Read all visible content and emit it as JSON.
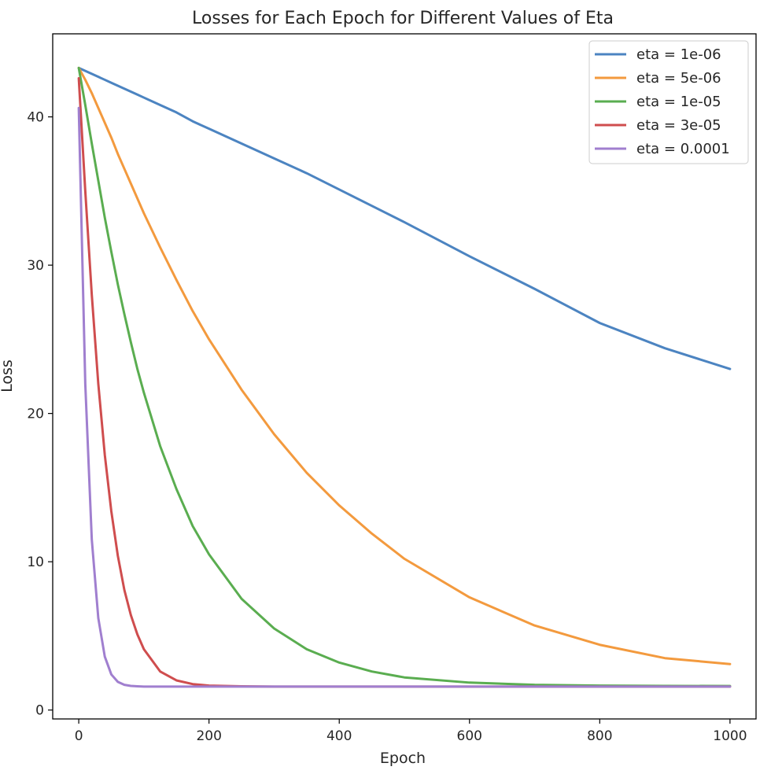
{
  "chart_data": {
    "type": "line",
    "title": "Losses for Each Epoch for Different Values of Eta",
    "xlabel": "Epoch",
    "ylabel": "Loss",
    "xlim": [
      -40,
      1040
    ],
    "ylim": [
      -0.6,
      45.6
    ],
    "xticks": [
      0,
      200,
      400,
      600,
      800,
      1000
    ],
    "xtick_labels": [
      "0",
      "200",
      "400",
      "600",
      "800",
      "1000"
    ],
    "yticks": [
      0,
      10,
      20,
      30,
      40
    ],
    "ytick_labels": [
      "0",
      "10",
      "20",
      "30",
      "40"
    ],
    "grid": false,
    "legend_position": "top-right",
    "x": [
      0,
      10,
      20,
      30,
      40,
      50,
      60,
      70,
      80,
      90,
      100,
      125,
      150,
      175,
      200,
      250,
      300,
      350,
      400,
      450,
      500,
      600,
      700,
      800,
      900,
      1000
    ],
    "series": [
      {
        "name": "eta = 1e-06",
        "color": "#4c84c1",
        "values": [
          43.3,
          43.1,
          42.9,
          42.7,
          42.5,
          42.3,
          42.1,
          41.9,
          41.7,
          41.5,
          41.3,
          40.8,
          40.3,
          39.7,
          39.2,
          38.2,
          37.2,
          36.2,
          35.1,
          34.0,
          32.9,
          30.6,
          28.4,
          26.1,
          24.4,
          23.0
        ]
      },
      {
        "name": "eta = 5e-06",
        "color": "#f39a3e",
        "values": [
          43.3,
          42.5,
          41.6,
          40.6,
          39.6,
          38.6,
          37.5,
          36.5,
          35.5,
          34.5,
          33.5,
          31.2,
          29.0,
          26.9,
          25.0,
          21.6,
          18.6,
          16.0,
          13.8,
          11.9,
          10.2,
          7.6,
          5.7,
          4.4,
          3.5,
          3.1
        ]
      },
      {
        "name": "eta = 1e-05",
        "color": "#5aad50",
        "values": [
          43.3,
          40.8,
          38.2,
          35.7,
          33.2,
          30.9,
          28.7,
          26.7,
          24.8,
          23.0,
          21.4,
          17.8,
          14.9,
          12.4,
          10.5,
          7.5,
          5.5,
          4.1,
          3.2,
          2.6,
          2.2,
          1.85,
          1.7,
          1.65,
          1.63,
          1.62
        ]
      },
      {
        "name": "eta = 3e-05",
        "color": "#cf4d4e",
        "values": [
          42.6,
          35.0,
          28.0,
          22.0,
          17.2,
          13.4,
          10.4,
          8.1,
          6.4,
          5.1,
          4.1,
          2.6,
          2.0,
          1.75,
          1.65,
          1.6,
          1.58,
          1.58,
          1.58,
          1.58,
          1.58,
          1.58,
          1.58,
          1.58,
          1.58,
          1.58
        ]
      },
      {
        "name": "eta = 0.0001",
        "color": "#a07fcf",
        "values": [
          40.6,
          22.0,
          11.5,
          6.2,
          3.6,
          2.4,
          1.9,
          1.7,
          1.63,
          1.6,
          1.58,
          1.58,
          1.58,
          1.58,
          1.58,
          1.58,
          1.58,
          1.58,
          1.58,
          1.58,
          1.58,
          1.58,
          1.58,
          1.58,
          1.58,
          1.58
        ]
      }
    ]
  }
}
